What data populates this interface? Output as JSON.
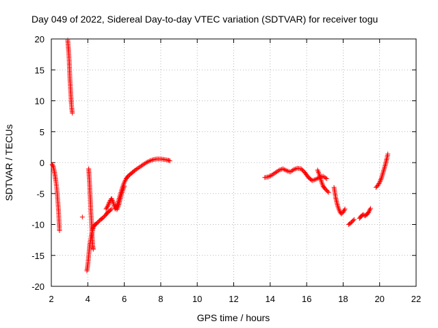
{
  "chart_data": {
    "type": "scatter",
    "title": "Day 049 of 2022, Sidereal Day-to-day VTEC variation (SDTVAR) for receiver togu",
    "xlabel": "GPS time / hours",
    "ylabel": "SDTVAR / TECUs",
    "xlim": [
      2,
      22
    ],
    "ylim": [
      -20,
      20
    ],
    "xticks": [
      "2",
      "4",
      "6",
      "8",
      "10",
      "12",
      "14",
      "16",
      "18",
      "20",
      "22"
    ],
    "yticks": [
      "20",
      "15",
      "10",
      "5",
      "0",
      "-5",
      "-10",
      "-15",
      "-20"
    ],
    "grid": true,
    "marker": "+",
    "color": "#ff0000",
    "series": [
      {
        "name": "SDTVAR",
        "segments": [
          {
            "x": [
              2.05,
              2.1,
              2.15,
              2.2,
              2.25,
              2.3,
              2.35,
              2.4,
              2.45
            ],
            "y": [
              -0.3,
              -0.6,
              -1.2,
              -2.0,
              -3.0,
              -4.2,
              -6.0,
              -8.0,
              -11.0
            ]
          },
          {
            "x": [
              2.9,
              2.92,
              2.95,
              2.98,
              3.0,
              3.02,
              3.05,
              3.08,
              3.1,
              3.12,
              3.15
            ],
            "y": [
              19.8,
              19.0,
              18.0,
              16.5,
              15.0,
              13.5,
              12.0,
              10.5,
              9.5,
              8.8,
              8.0
            ]
          },
          {
            "x": [
              3.7
            ],
            "y": [
              -8.8
            ]
          },
          {
            "x": [
              3.95,
              4.0,
              4.05,
              4.1,
              4.15,
              4.2,
              4.25,
              4.3,
              4.35,
              4.4,
              4.5,
              4.6,
              4.7,
              4.8,
              4.9,
              5.0,
              5.1,
              5.2,
              5.3
            ],
            "y": [
              -17.5,
              -16.5,
              -15.0,
              -13.5,
              -12.5,
              -11.8,
              -11.0,
              -10.5,
              -10.2,
              -10.0,
              -9.8,
              -9.5,
              -9.2,
              -9.0,
              -8.7,
              -8.4,
              -8.0,
              -7.8,
              -7.5
            ]
          },
          {
            "x": [
              4.05,
              4.07,
              4.1,
              4.12,
              4.15,
              4.17,
              4.2,
              4.22,
              4.25,
              4.27,
              4.3
            ],
            "y": [
              -1.0,
              -2.0,
              -3.5,
              -5.0,
              -6.5,
              -8.0,
              -9.5,
              -11.0,
              -12.5,
              -13.5,
              -14.0
            ]
          },
          {
            "x": [
              5.0,
              5.1,
              5.2,
              5.3,
              5.4,
              5.5,
              5.6,
              5.7,
              5.8,
              5.9,
              6.0,
              6.1,
              6.2,
              6.4,
              6.6,
              6.8,
              7.0,
              7.2,
              7.4,
              7.6,
              7.8,
              8.0,
              8.2,
              8.4,
              8.5
            ],
            "y": [
              -7.5,
              -7.0,
              -6.3,
              -5.8,
              -6.5,
              -7.5,
              -7.0,
              -6.0,
              -5.0,
              -4.0,
              -3.2,
              -2.6,
              -2.2,
              -1.7,
              -1.2,
              -0.8,
              -0.4,
              0.0,
              0.3,
              0.5,
              0.6,
              0.6,
              0.5,
              0.4,
              0.3
            ]
          },
          {
            "x": [
              5.6,
              5.7,
              5.8,
              5.9,
              6.0
            ],
            "y": [
              -7.6,
              -6.8,
              -5.6,
              -4.6,
              -3.8
            ]
          },
          {
            "x": [
              13.7,
              13.9,
              14.1,
              14.3,
              14.5,
              14.7,
              14.9,
              15.1,
              15.3,
              15.5,
              15.7,
              15.9,
              16.1,
              16.3,
              16.5,
              16.7,
              16.9,
              17.1
            ],
            "y": [
              -2.4,
              -2.3,
              -2.0,
              -1.6,
              -1.2,
              -1.0,
              -1.3,
              -1.5,
              -1.1,
              -0.9,
              -1.0,
              -1.6,
              -2.4,
              -2.9,
              -2.7,
              -2.4,
              -2.2,
              -2.6
            ]
          },
          {
            "x": [
              16.6,
              16.7,
              16.8,
              16.9,
              17.0,
              17.1,
              17.2
            ],
            "y": [
              -1.2,
              -2.0,
              -3.0,
              -3.8,
              -4.2,
              -4.5,
              -4.8
            ]
          },
          {
            "x": [
              17.5,
              17.6,
              17.7,
              17.8,
              17.9,
              18.0,
              18.1
            ],
            "y": [
              -4.0,
              -5.8,
              -7.0,
              -7.8,
              -8.3,
              -8.0,
              -7.5
            ]
          },
          {
            "x": [
              18.3,
              18.4,
              18.5,
              18.6
            ],
            "y": [
              -10.0,
              -9.8,
              -9.5,
              -9.2
            ]
          },
          {
            "x": [
              18.9,
              19.0,
              19.1,
              19.2,
              19.3,
              19.4,
              19.5
            ],
            "y": [
              -9.0,
              -8.6,
              -8.4,
              -8.6,
              -8.4,
              -8.0,
              -7.4
            ]
          },
          {
            "x": [
              19.8,
              19.9,
              20.0,
              20.1,
              20.2,
              20.3,
              20.4,
              20.45
            ],
            "y": [
              -4.0,
              -3.7,
              -3.2,
              -2.5,
              -1.5,
              -0.5,
              0.7,
              1.4
            ]
          }
        ]
      }
    ]
  }
}
